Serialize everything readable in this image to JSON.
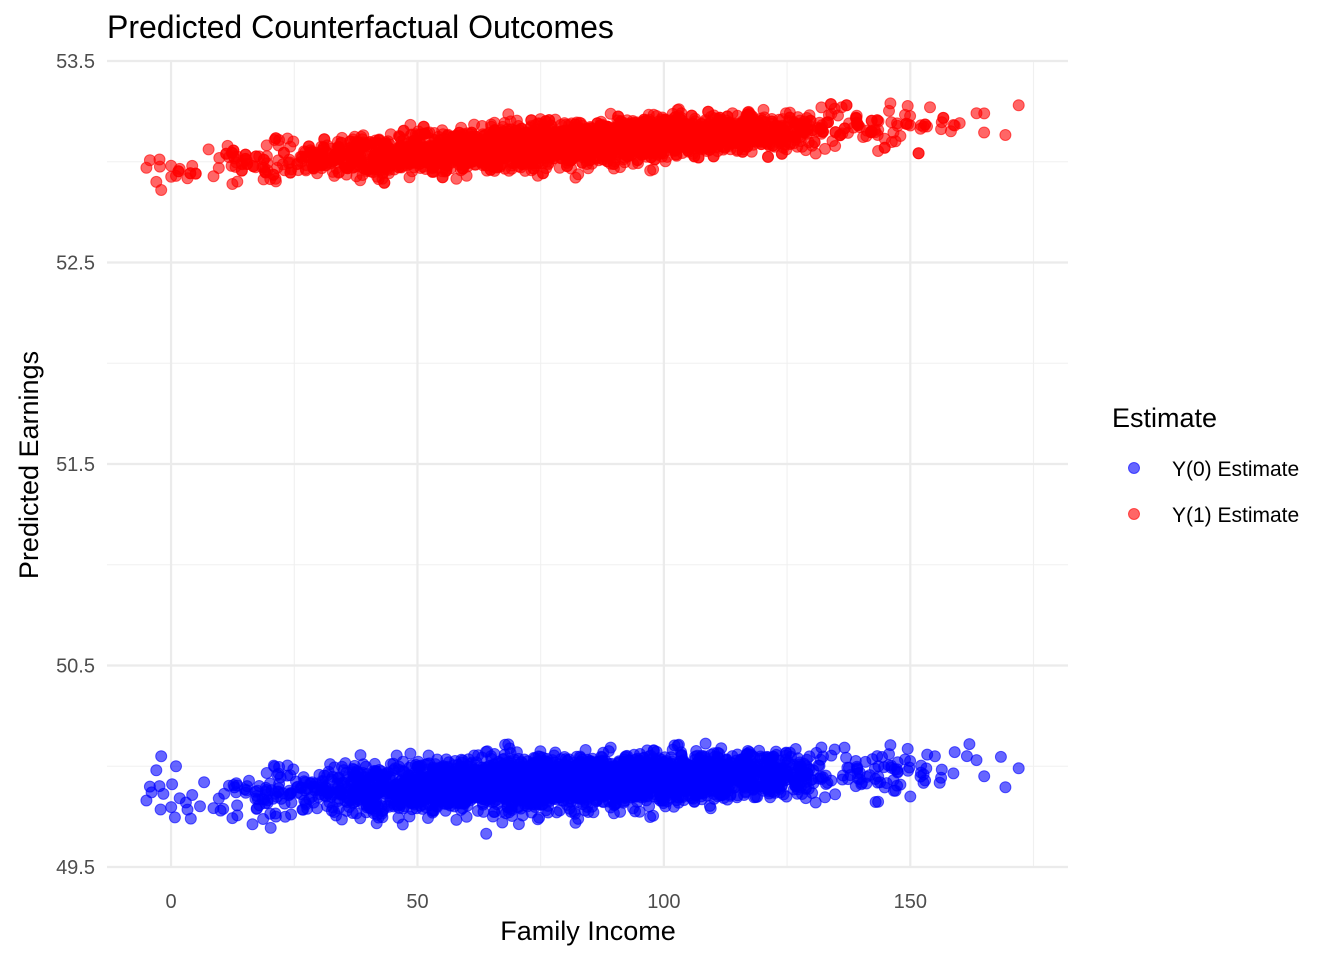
{
  "chart_data": {
    "type": "scatter",
    "title": "Predicted Counterfactual Outcomes",
    "xlabel": "Family Income",
    "ylabel": "Predicted Earnings",
    "xlim": [
      -13,
      182
    ],
    "ylim": [
      49.5,
      53.5
    ],
    "x_ticks": [
      0,
      50,
      100,
      150
    ],
    "x_tick_labels": [
      "0",
      "50",
      "100",
      "150"
    ],
    "y_ticks": [
      49.5,
      50.5,
      51.5,
      52.5,
      53.5
    ],
    "y_tick_labels": [
      "49.5",
      "50.5",
      "51.5",
      "52.5",
      "53.5"
    ],
    "grid": true,
    "legend": {
      "title": "Estimate",
      "position": "right"
    },
    "series": [
      {
        "name": "Y(0) Estimate",
        "color": "#0000ff",
        "trend": {
          "x": [
            0,
            170
          ],
          "y": [
            49.85,
            50.0
          ]
        },
        "spread_y": 0.06,
        "x_range": [
          -5,
          172
        ],
        "x_center": 80,
        "x_sd": 28,
        "n_points": 3200,
        "outliers": [
          {
            "x": -5,
            "y": 49.83
          },
          {
            "x": -3,
            "y": 49.98
          },
          {
            "x": -2,
            "y": 50.05
          },
          {
            "x": 1,
            "y": 50.0
          },
          {
            "x": 3,
            "y": 49.82
          },
          {
            "x": 4,
            "y": 49.74
          },
          {
            "x": 150,
            "y": 49.85
          },
          {
            "x": 153,
            "y": 49.93
          },
          {
            "x": 155,
            "y": 50.05
          },
          {
            "x": 159,
            "y": 50.07
          },
          {
            "x": 162,
            "y": 50.11
          },
          {
            "x": 165,
            "y": 49.95
          },
          {
            "x": 172,
            "y": 49.99
          }
        ]
      },
      {
        "name": "Y(1) Estimate",
        "color": "#ff0000",
        "trend": {
          "x": [
            0,
            170
          ],
          "y": [
            52.97,
            53.22
          ]
        },
        "spread_y": 0.05,
        "x_range": [
          -5,
          172
        ],
        "x_center": 80,
        "x_sd": 28,
        "n_points": 3200,
        "outliers": [
          {
            "x": -5,
            "y": 52.97
          },
          {
            "x": -3,
            "y": 52.9
          },
          {
            "x": -2,
            "y": 52.86
          },
          {
            "x": 0,
            "y": 52.98
          },
          {
            "x": 1,
            "y": 52.93
          },
          {
            "x": 150,
            "y": 53.18
          },
          {
            "x": 154,
            "y": 53.27
          },
          {
            "x": 159,
            "y": 53.18
          },
          {
            "x": 165,
            "y": 53.24
          },
          {
            "x": 172,
            "y": 53.28
          }
        ]
      }
    ]
  }
}
